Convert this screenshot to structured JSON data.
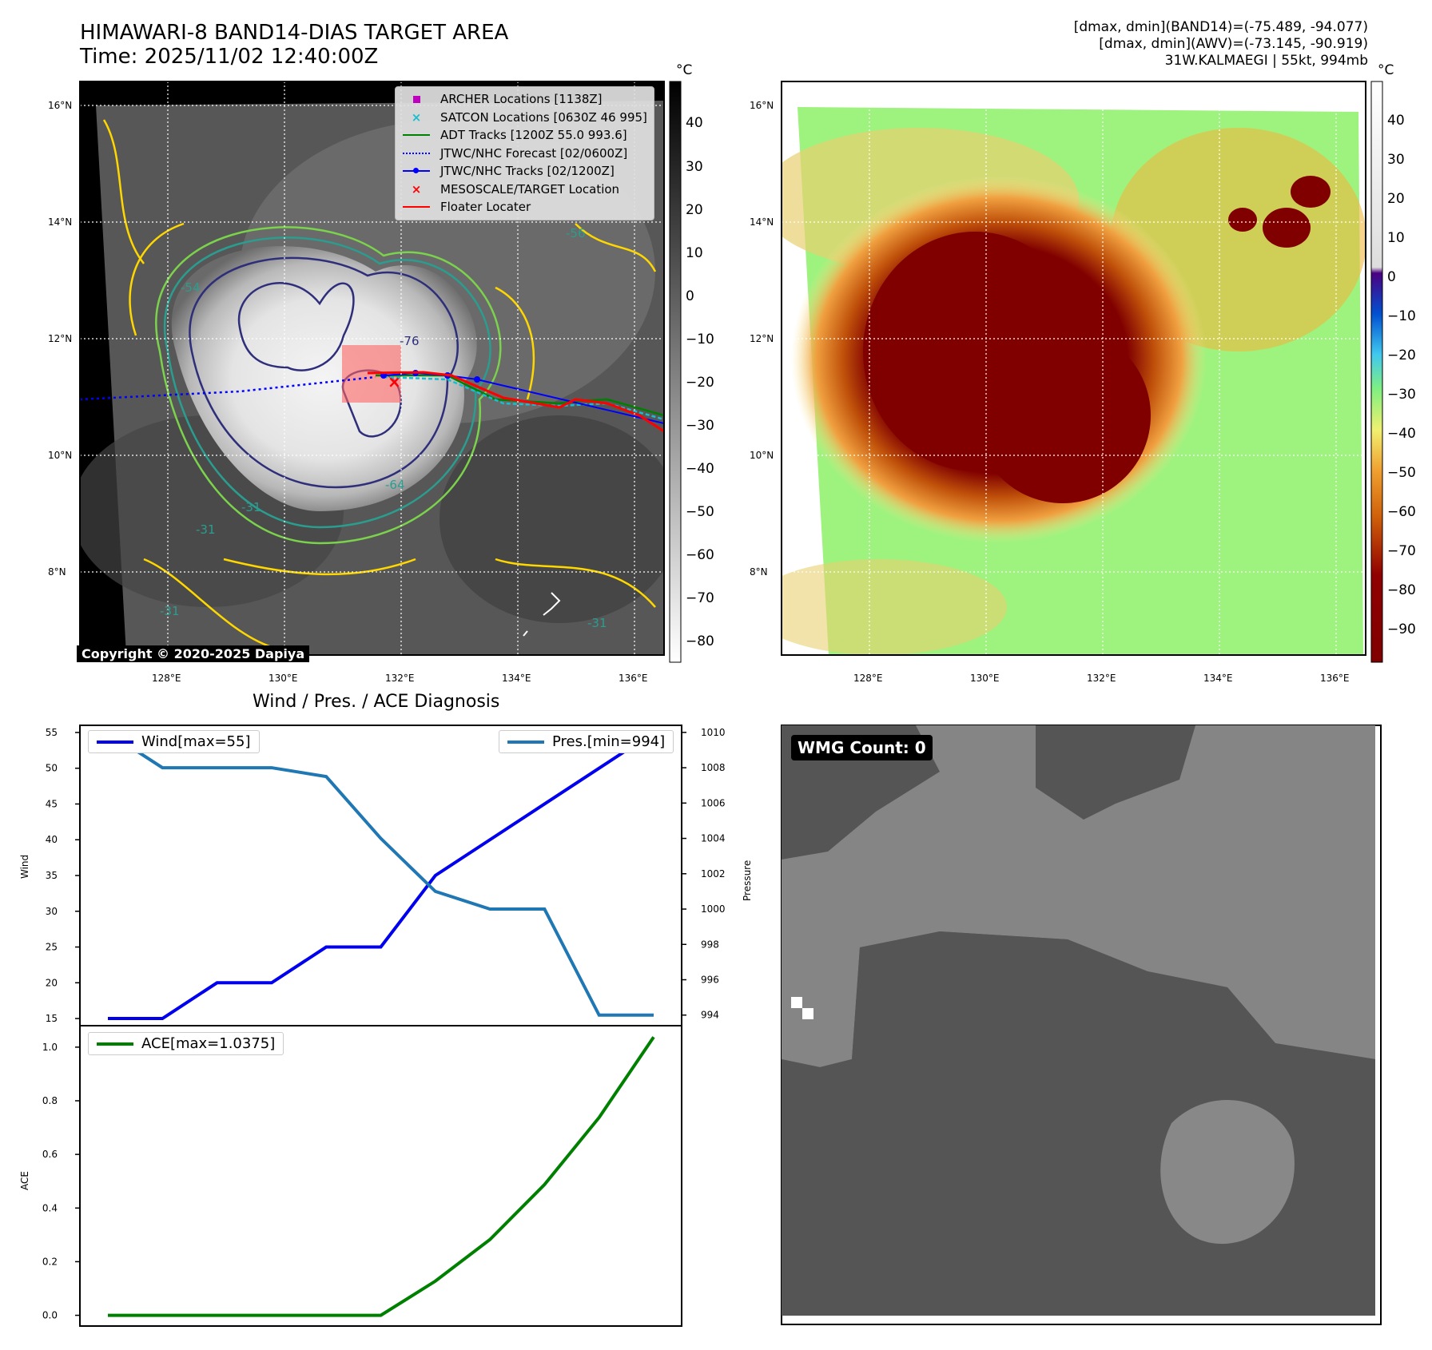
{
  "header": {
    "title_line1": "HIMAWARI-8 BAND14-DIAS TARGET AREA",
    "title_line2": "Time: 2025/11/02 12:40:00Z",
    "right_line1": "[dmax, dmin](BAND14)=(-75.489, -94.077)",
    "right_line2": "[dmax, dmin](AWV)=(-73.145, -90.919)",
    "right_line3": "31W.KALMAEGI | 55kt, 994mb"
  },
  "ir_map": {
    "lat_ticks": [
      "16°N",
      "14°N",
      "12°N",
      "10°N",
      "8°N"
    ],
    "lon_ticks": [
      "128°E",
      "130°E",
      "132°E",
      "134°E",
      "136°E"
    ],
    "contour_labels": [
      "-54",
      "-76",
      "-64",
      "-31",
      "-31",
      "-31",
      "-31",
      "-56"
    ],
    "colorbar_unit": "°C",
    "colorbar_ticks": [
      "40",
      "30",
      "20",
      "10",
      "0",
      "−10",
      "−20",
      "−30",
      "−40",
      "−50",
      "−60",
      "−70",
      "−80"
    ],
    "copyright": "Copyright © 2020-2025 Dapiya",
    "legend": [
      {
        "label": "ARCHER Locations [1138Z]",
        "symbol": "square",
        "color": "#bf00bf"
      },
      {
        "label": "SATCON Locations [0630Z 46 995]",
        "symbol": "x",
        "color": "#17becf"
      },
      {
        "label": "ADT Tracks [1200Z 55.0 993.6]",
        "symbol": "line",
        "color": "#008000"
      },
      {
        "label": "JTWC/NHC Forecast [02/0600Z]",
        "symbol": "dotted",
        "color": "#0000ff"
      },
      {
        "label": "JTWC/NHC Tracks [02/1200Z]",
        "symbol": "line-dot",
        "color": "#0000ff"
      },
      {
        "label": "MESOSCALE/TARGET Location",
        "symbol": "x",
        "color": "#ff0000"
      },
      {
        "label": "Floater Locater",
        "symbol": "line",
        "color": "#ff0000"
      }
    ]
  },
  "color_map": {
    "lat_ticks": [
      "16°N",
      "14°N",
      "12°N",
      "10°N",
      "8°N"
    ],
    "lon_ticks": [
      "128°E",
      "130°E",
      "132°E",
      "134°E",
      "136°E"
    ],
    "colorbar_unit": "°C",
    "colorbar_ticks": [
      "40",
      "30",
      "20",
      "10",
      "0",
      "−10",
      "−20",
      "−30",
      "−40",
      "−50",
      "−60",
      "−70",
      "−80",
      "−90"
    ]
  },
  "chart_data": [
    {
      "type": "line",
      "title": "Wind / Pres. / ACE Diagnosis",
      "ylabel": "Wind",
      "y2label": "Pressure",
      "ylim": [
        14,
        56
      ],
      "y2lim": [
        993.4,
        1010.4
      ],
      "yticks": [
        15,
        20,
        25,
        30,
        35,
        40,
        45,
        50,
        55
      ],
      "y2ticks": [
        994,
        996,
        998,
        1000,
        1002,
        1004,
        1006,
        1008,
        1010
      ],
      "series": [
        {
          "name": "Wind[max=55]",
          "axis": "left",
          "color": "#0000ee",
          "values": [
            15,
            15,
            20,
            20,
            25,
            25,
            35,
            40,
            45,
            50,
            55
          ]
        },
        {
          "name": "Pres.[min=994]",
          "axis": "right",
          "color": "#1f77b4",
          "values": [
            1010,
            1008,
            1008,
            1008,
            1007.5,
            1004,
            1001,
            1000,
            1000,
            994,
            994
          ]
        }
      ]
    },
    {
      "type": "line",
      "ylabel": "ACE",
      "ylim": [
        -0.04,
        1.08
      ],
      "yticks": [
        "0.0",
        "0.2",
        "0.4",
        "0.6",
        "0.8",
        "1.0"
      ],
      "series": [
        {
          "name": "ACE[max=1.0375]",
          "color": "#008000",
          "values": [
            0,
            0,
            0,
            0,
            0,
            0,
            0.1275,
            0.2825,
            0.4875,
            0.7375,
            1.0375
          ]
        }
      ]
    }
  ],
  "wmg": {
    "badge": "WMG Count: 0"
  }
}
